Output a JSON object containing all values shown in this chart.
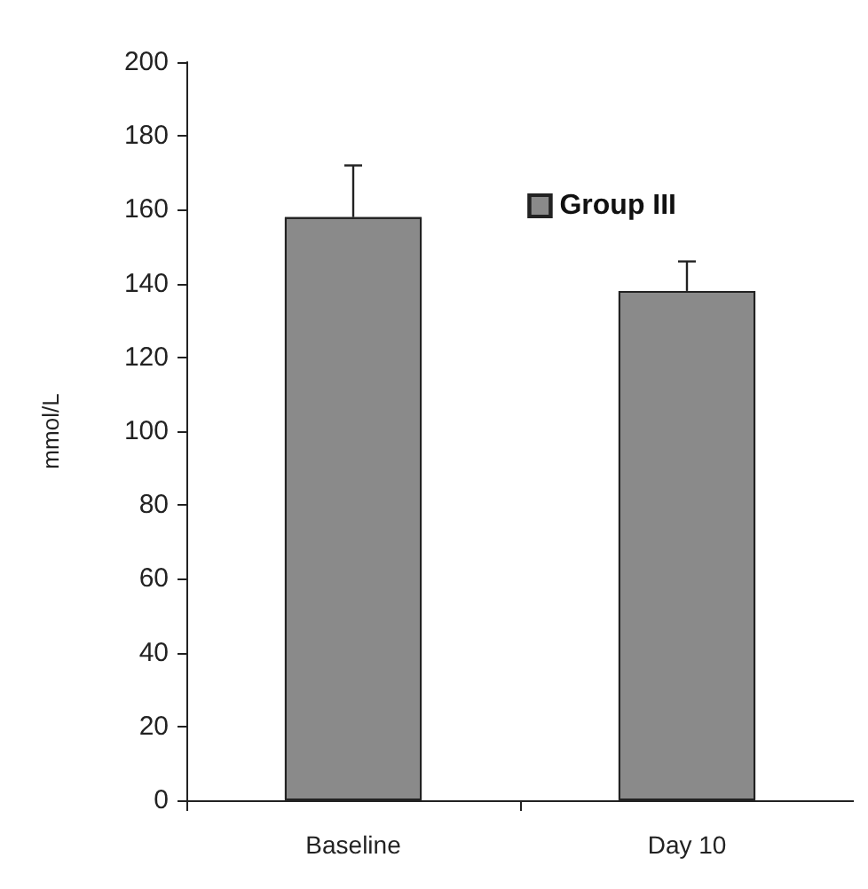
{
  "chart_data": {
    "type": "bar",
    "ylabel": "mmol/L",
    "categories": [
      "Baseline",
      "Day 10"
    ],
    "series": [
      {
        "name": "Group III",
        "color": "#8a8a8a",
        "values": [
          158,
          138
        ],
        "errors": [
          [
            158,
            172
          ],
          [
            138,
            146
          ]
        ]
      }
    ],
    "ylim": [
      0,
      200
    ],
    "yticks": [
      0,
      20,
      40,
      60,
      80,
      100,
      120,
      140,
      160,
      180,
      200
    ],
    "grid": false,
    "legend": "top right"
  }
}
